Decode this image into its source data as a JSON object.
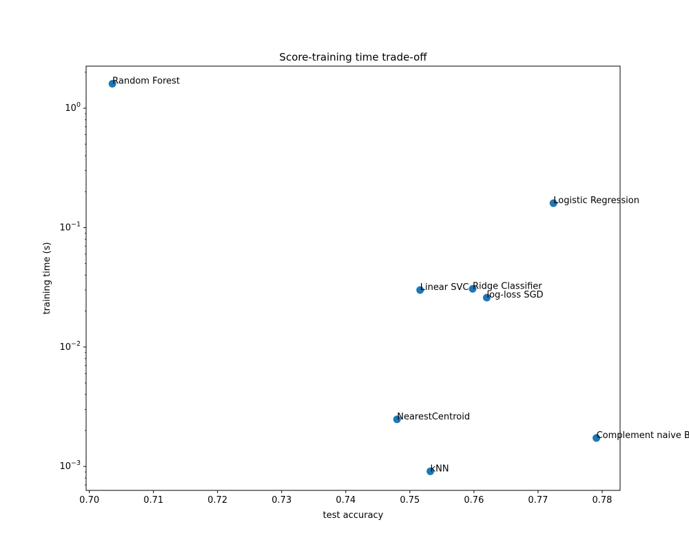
{
  "chart_data": {
    "type": "scatter",
    "title": "Score-training time trade-off",
    "xlabel": "test accuracy",
    "ylabel": "training time (s)",
    "xlim": [
      0.6995,
      0.7828
    ],
    "ylim": [
      0.00063,
      2.25
    ],
    "yscale": "log",
    "grid": false,
    "marker_color": "#1f77b4",
    "x_ticks": [
      {
        "value": 0.7,
        "label": "0.70"
      },
      {
        "value": 0.71,
        "label": "0.71"
      },
      {
        "value": 0.72,
        "label": "0.72"
      },
      {
        "value": 0.73,
        "label": "0.73"
      },
      {
        "value": 0.74,
        "label": "0.74"
      },
      {
        "value": 0.75,
        "label": "0.75"
      },
      {
        "value": 0.76,
        "label": "0.76"
      },
      {
        "value": 0.77,
        "label": "0.77"
      },
      {
        "value": 0.78,
        "label": "0.78"
      }
    ],
    "y_ticks": [
      {
        "value": 0.001,
        "base": "10",
        "exp": "−3"
      },
      {
        "value": 0.01,
        "base": "10",
        "exp": "−2"
      },
      {
        "value": 0.1,
        "base": "10",
        "exp": "−1"
      },
      {
        "value": 1,
        "base": "10",
        "exp": "0"
      }
    ],
    "points": [
      {
        "label": "Random Forest",
        "x": 0.7036,
        "y": 1.6
      },
      {
        "label": "Logistic Regression",
        "x": 0.7724,
        "y": 0.16
      },
      {
        "label": "Linear SVC",
        "x": 0.7516,
        "y": 0.03
      },
      {
        "label": "Ridge Classifier",
        "x": 0.7598,
        "y": 0.0307
      },
      {
        "label": "log-loss SGD",
        "x": 0.762,
        "y": 0.0259
      },
      {
        "label": "NearestCentroid",
        "x": 0.748,
        "y": 0.00248
      },
      {
        "label": "Complement naive Bayes",
        "x": 0.7791,
        "y": 0.00173
      },
      {
        "label": "kNN",
        "x": 0.7532,
        "y": 0.00091
      }
    ]
  }
}
